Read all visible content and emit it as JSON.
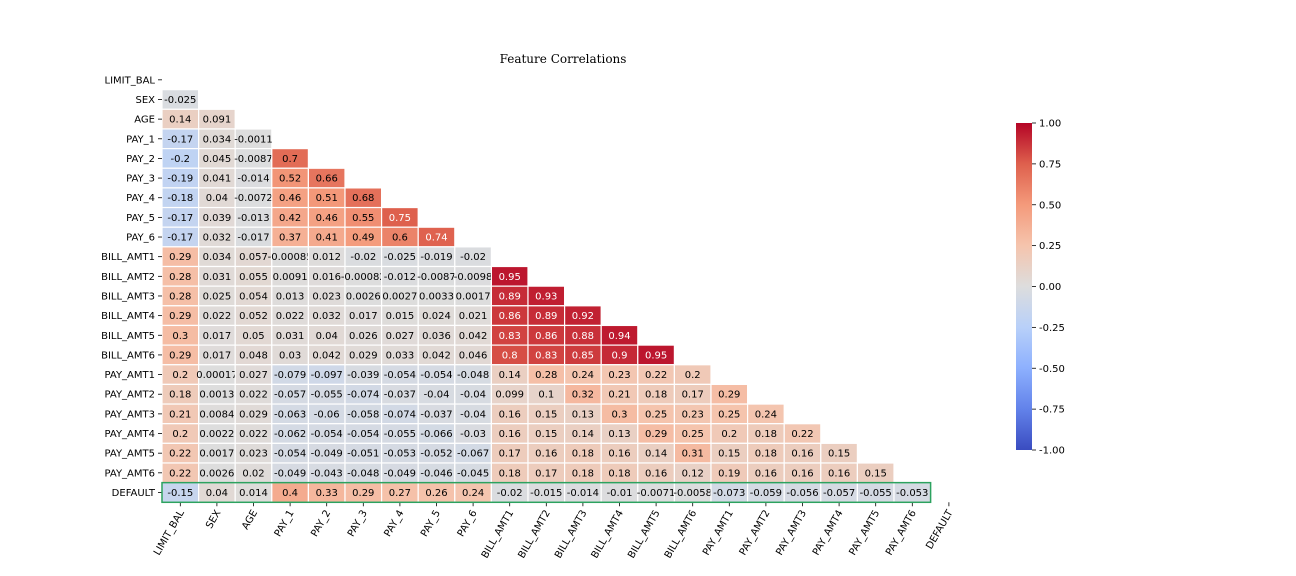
{
  "chart_data": {
    "type": "heatmap",
    "title": "Feature Correlations",
    "labels": [
      "LIMIT_BAL",
      "SEX",
      "AGE",
      "PAY_1",
      "PAY_2",
      "PAY_3",
      "PAY_4",
      "PAY_5",
      "PAY_6",
      "BILL_AMT1",
      "BILL_AMT2",
      "BILL_AMT3",
      "BILL_AMT4",
      "BILL_AMT5",
      "BILL_AMT6",
      "PAY_AMT1",
      "PAY_AMT2",
      "PAY_AMT3",
      "PAY_AMT4",
      "PAY_AMT5",
      "PAY_AMT6",
      "DEFAULT"
    ],
    "mask": "upper-triangle-including-diagonal",
    "lower_triangle_rows": [
      [],
      [
        "-0.025"
      ],
      [
        "0.14",
        "0.091"
      ],
      [
        "-0.17",
        "0.034",
        "-0.0011"
      ],
      [
        "-0.2",
        "0.045",
        "-0.0087",
        "0.7"
      ],
      [
        "-0.19",
        "0.041",
        "-0.014",
        "0.52",
        "0.66"
      ],
      [
        "-0.18",
        "0.04",
        "-0.0072",
        "0.46",
        "0.51",
        "0.68"
      ],
      [
        "-0.17",
        "0.039",
        "-0.013",
        "0.42",
        "0.46",
        "0.55",
        "0.75"
      ],
      [
        "-0.17",
        "0.032",
        "-0.017",
        "0.37",
        "0.41",
        "0.49",
        "0.6",
        "0.74"
      ],
      [
        "0.29",
        "0.034",
        "0.057",
        "-0.00085",
        "0.012",
        "-0.02",
        "-0.025",
        "-0.019",
        "-0.02"
      ],
      [
        "0.28",
        "0.031",
        "0.055",
        "0.0091",
        "0.016",
        "-0.00082",
        "-0.012",
        "-0.0087",
        "-0.0098",
        "0.95"
      ],
      [
        "0.28",
        "0.025",
        "0.054",
        "0.013",
        "0.023",
        "0.0026",
        "0.0027",
        "0.0033",
        "0.0017",
        "0.89",
        "0.93"
      ],
      [
        "0.29",
        "0.022",
        "0.052",
        "0.022",
        "0.032",
        "0.017",
        "0.015",
        "0.024",
        "0.021",
        "0.86",
        "0.89",
        "0.92"
      ],
      [
        "0.3",
        "0.017",
        "0.05",
        "0.031",
        "0.04",
        "0.026",
        "0.027",
        "0.036",
        "0.042",
        "0.83",
        "0.86",
        "0.88",
        "0.94"
      ],
      [
        "0.29",
        "0.017",
        "0.048",
        "0.03",
        "0.042",
        "0.029",
        "0.033",
        "0.042",
        "0.046",
        "0.8",
        "0.83",
        "0.85",
        "0.9",
        "0.95"
      ],
      [
        "0.2",
        "0.00017",
        "0.027",
        "-0.079",
        "-0.097",
        "-0.039",
        "-0.054",
        "-0.054",
        "-0.048",
        "0.14",
        "0.28",
        "0.24",
        "0.23",
        "0.22",
        "0.2"
      ],
      [
        "0.18",
        "0.0013",
        "0.022",
        "-0.057",
        "-0.055",
        "-0.074",
        "-0.037",
        "-0.04",
        "-0.04",
        "0.099",
        "0.1",
        "0.32",
        "0.21",
        "0.18",
        "0.17",
        "0.29"
      ],
      [
        "0.21",
        "0.0084",
        "0.029",
        "-0.063",
        "-0.06",
        "-0.058",
        "-0.074",
        "-0.037",
        "-0.04",
        "0.16",
        "0.15",
        "0.13",
        "0.3",
        "0.25",
        "0.23",
        "0.25",
        "0.24"
      ],
      [
        "0.2",
        "0.0022",
        "0.022",
        "-0.062",
        "-0.054",
        "-0.054",
        "-0.055",
        "-0.066",
        "-0.03",
        "0.16",
        "0.15",
        "0.14",
        "0.13",
        "0.29",
        "0.25",
        "0.2",
        "0.18",
        "0.22"
      ],
      [
        "0.22",
        "0.0017",
        "0.023",
        "-0.054",
        "-0.049",
        "-0.051",
        "-0.053",
        "-0.052",
        "-0.067",
        "0.17",
        "0.16",
        "0.18",
        "0.16",
        "0.14",
        "0.31",
        "0.15",
        "0.18",
        "0.16",
        "0.15"
      ],
      [
        "0.22",
        "0.0026",
        "0.02",
        "-0.049",
        "-0.043",
        "-0.048",
        "-0.049",
        "-0.046",
        "-0.045",
        "0.18",
        "0.17",
        "0.18",
        "0.18",
        "0.16",
        "0.12",
        "0.19",
        "0.16",
        "0.16",
        "0.16",
        "0.15"
      ],
      [
        "-0.15",
        "0.04",
        "0.014",
        "0.4",
        "0.33",
        "0.29",
        "0.27",
        "0.26",
        "0.24",
        "-0.02",
        "-0.015",
        "-0.014",
        "-0.01",
        "-0.0071",
        "-0.0058",
        "-0.073",
        "-0.059",
        "-0.056",
        "-0.057",
        "-0.055",
        "-0.053"
      ]
    ],
    "highlight_row": "DEFAULT",
    "highlight_color": "#2ca25f",
    "colormap": "coolwarm",
    "colorbar": {
      "range": [
        -1.0,
        1.0
      ],
      "ticks": [
        "-1.00",
        "-0.75",
        "-0.50",
        "-0.25",
        "0.00",
        "0.25",
        "0.50",
        "0.75",
        "1.00"
      ]
    }
  }
}
